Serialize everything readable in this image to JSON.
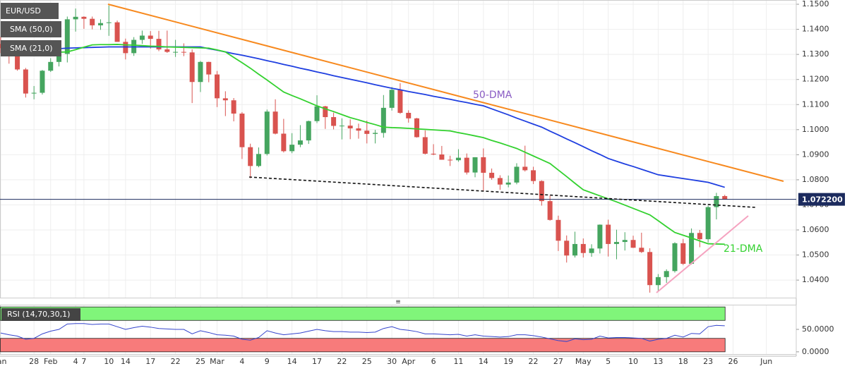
{
  "chart_data": [
    {
      "type": "candlestick",
      "categories": [
        "Jan",
        null,
        null,
        null,
        "28",
        null,
        "Feb",
        null,
        null,
        "4",
        "7",
        null,
        null,
        "10",
        null,
        "14",
        null,
        null,
        "17",
        null,
        null,
        "22",
        null,
        null,
        "25",
        null,
        "Mar",
        null,
        null,
        "4",
        null,
        null,
        "9",
        null,
        null,
        "14",
        null,
        null,
        "17",
        null,
        null,
        "22",
        null,
        null,
        "25",
        null,
        null,
        "30",
        null,
        "Apr",
        null,
        null,
        "6",
        null,
        null,
        "11",
        null,
        null,
        "14",
        null,
        null,
        "19",
        null,
        null,
        "22",
        null,
        null,
        "27",
        null,
        null,
        "May",
        null,
        null,
        "5",
        null,
        null,
        "10",
        null,
        null,
        "13",
        null,
        null,
        "18",
        null,
        null,
        "23",
        null,
        null,
        "26",
        null,
        null,
        null,
        "Jun",
        null,
        null,
        null
      ],
      "series": [
        {
          "name": "EUR/USD",
          "up_color": "#45a55f",
          "down_color": "#d9534f",
          "open": [
            1.1342,
            1.1325,
            1.13,
            1.124,
            1.1144,
            1.1147,
            1.1235,
            1.127,
            1.1302,
            1.144,
            1.145,
            1.1442,
            1.1416,
            1.1425,
            1.1428,
            1.135,
            1.1305,
            1.1358,
            1.1375,
            1.1362,
            1.132,
            1.131,
            1.131,
            1.1308,
            1.119,
            1.127,
            1.122,
            1.1125,
            1.1117,
            1.1064,
            1.093,
            1.0855,
            1.0903,
            1.1072,
            1.0984,
            1.0914,
            1.094,
            1.0957,
            1.1034,
            1.1093,
            1.105,
            1.1015,
            1.1016,
            1.1005,
            1.0996,
            1.0983,
            1.0987,
            1.1087,
            1.1159,
            1.1067,
            1.1045,
            1.097,
            1.0904,
            1.0901,
            1.088,
            1.0878,
            1.0888,
            1.0829,
            1.089,
            1.0828,
            1.0807,
            1.0781,
            1.0789,
            1.0852,
            1.0838,
            1.0795,
            1.0715,
            1.064,
            1.0557,
            1.0498,
            1.0544,
            1.0508,
            1.0526,
            1.0621,
            1.0544,
            1.0552,
            1.056,
            1.0529,
            1.0512,
            1.038,
            1.0412,
            1.0436,
            1.0547,
            1.0465,
            1.0588,
            1.0563,
            1.0691,
            1.0735,
            null,
            null,
            null,
            null,
            null,
            null,
            null,
            null
          ],
          "high": [
            1.137,
            1.1335,
            1.1311,
            1.1246,
            1.1174,
            1.1238,
            1.1285,
            1.1315,
            1.1451,
            1.1483,
            1.1452,
            1.1451,
            1.144,
            1.1495,
            1.1435,
            1.1363,
            1.1369,
            1.1395,
            1.1393,
            1.1394,
            1.1395,
            1.1358,
            1.1344,
            1.132,
            1.1274,
            1.1271,
            1.1234,
            1.1153,
            1.1126,
            1.107,
            1.0944,
            1.0929,
            1.108,
            1.1121,
            1.1043,
            1.0986,
            1.1018,
            1.1036,
            1.1137,
            1.1095,
            1.1068,
            1.1045,
            1.1041,
            1.1024,
            1.1036,
            1.0999,
            1.1138,
            1.117,
            1.1185,
            1.1077,
            1.1047,
            1.0997,
            1.0942,
            1.0935,
            1.0896,
            1.0922,
            1.0905,
            1.089,
            1.0925,
            1.0845,
            1.0818,
            1.0817,
            1.0866,
            1.0936,
            1.0852,
            1.0798,
            1.0737,
            1.0657,
            1.0578,
            1.0593,
            1.0566,
            1.0543,
            1.0622,
            1.0641,
            1.0601,
            1.0591,
            1.0577,
            1.0589,
            1.0527,
            1.0424,
            1.0443,
            1.0551,
            1.0564,
            1.0606,
            1.06,
            1.0697,
            1.0748,
            1.074,
            null,
            null,
            null,
            null,
            null,
            null,
            null,
            null
          ],
          "low": [
            1.1305,
            1.1263,
            1.1235,
            1.1128,
            1.1121,
            1.114,
            1.123,
            1.1252,
            1.1268,
            1.1391,
            1.1402,
            1.14,
            1.1398,
            1.1374,
            1.136,
            1.128,
            1.1294,
            1.1342,
            1.1323,
            1.1313,
            1.1306,
            1.129,
            1.1293,
            1.1106,
            1.115,
            1.1189,
            1.109,
            1.1054,
            1.1033,
            1.0883,
            1.0806,
            1.085,
            1.0897,
            1.0981,
            1.0909,
            1.0906,
            1.093,
            1.0943,
            1.1026,
            1.1003,
            1.1001,
            1.0961,
            1.0962,
            1.0964,
            1.0945,
            1.0945,
            1.0968,
            1.1076,
            1.1063,
            1.1028,
            1.0968,
            1.0901,
            1.0898,
            1.088,
            1.0855,
            1.0872,
            1.0821,
            1.081,
            1.0757,
            1.08,
            1.076,
            1.077,
            1.0782,
            1.0833,
            1.0783,
            1.0697,
            1.0637,
            1.0516,
            1.047,
            1.049,
            1.049,
            1.0493,
            1.0506,
            1.0494,
            1.0483,
            1.0518,
            1.0528,
            1.0508,
            1.035,
            1.0354,
            1.0389,
            1.043,
            1.046,
            1.0462,
            1.0531,
            1.055,
            1.0642,
            1.0721,
            null,
            null,
            null,
            null,
            null,
            null,
            null,
            null
          ],
          "close": [
            1.1325,
            1.13,
            1.124,
            1.1144,
            1.1147,
            1.1235,
            1.127,
            1.1302,
            1.144,
            1.145,
            1.1442,
            1.1416,
            1.1425,
            1.1428,
            1.135,
            1.1305,
            1.1358,
            1.1375,
            1.1362,
            1.132,
            1.131,
            1.131,
            1.1308,
            1.119,
            1.127,
            1.122,
            1.1125,
            1.1117,
            1.1064,
            1.093,
            1.0855,
            1.0903,
            1.1072,
            1.0984,
            1.0914,
            1.094,
            1.0957,
            1.1034,
            1.1093,
            1.105,
            1.1015,
            1.1016,
            1.1005,
            1.0996,
            1.0983,
            1.0987,
            1.1087,
            1.1159,
            1.1067,
            1.1045,
            1.097,
            1.0904,
            1.0901,
            1.088,
            1.0878,
            1.0888,
            1.0829,
            1.089,
            1.0828,
            1.0807,
            1.0781,
            1.0789,
            1.0852,
            1.0838,
            1.0795,
            1.0715,
            1.064,
            1.0557,
            1.0498,
            1.0544,
            1.0508,
            1.0526,
            1.0621,
            1.0544,
            1.0552,
            1.056,
            1.0529,
            1.0512,
            1.038,
            1.0412,
            1.0436,
            1.0547,
            1.0465,
            1.0588,
            1.0563,
            1.0691,
            1.0735,
            1.0722,
            null,
            null,
            null,
            null,
            null,
            null,
            null,
            null
          ]
        },
        {
          "name": "SMA (50,0)",
          "type": "line",
          "color": "#1f3fe0",
          "values": [
            1.131,
            1.1312,
            1.1314,
            1.1316,
            1.1317,
            1.1319,
            1.1321,
            1.1323,
            1.1325,
            1.1326,
            1.1327,
            1.1328,
            1.1329,
            1.133,
            1.133,
            1.133,
            1.133,
            1.133,
            1.133,
            1.133,
            1.133,
            1.133,
            1.133,
            1.133,
            1.133,
            1.1323,
            1.1317,
            1.131,
            1.1303,
            1.1297,
            1.129,
            1.1283,
            1.1275,
            1.1268,
            1.126,
            1.1253,
            1.1245,
            1.1238,
            1.123,
            1.1223,
            1.1215,
            1.1208,
            1.1201,
            1.1194,
            1.1187,
            1.1179,
            1.1172,
            1.1165,
            1.1159,
            1.1152,
            1.1146,
            1.114,
            1.1133,
            1.1127,
            1.1121,
            1.1114,
            1.1108,
            1.1101,
            1.1095,
            1.1083,
            1.1071,
            1.1059,
            1.1046,
            1.1034,
            1.1022,
            1.101,
            1.0994,
            1.0979,
            1.0963,
            1.0948,
            1.0932,
            1.0916,
            1.0901,
            1.0885,
            1.0874,
            1.0863,
            1.0853,
            1.0842,
            1.0831,
            1.082,
            1.0815,
            1.081,
            1.0805,
            1.08,
            1.0795,
            1.079,
            1.078,
            1.077,
            null,
            null,
            null,
            null,
            null,
            null,
            null,
            null
          ]
        },
        {
          "name": "SMA (21,0)",
          "type": "line",
          "color": "#33d12f",
          "values": [
            1.13,
            1.1301,
            1.1303,
            1.1304,
            1.1305,
            1.1306,
            1.1308,
            1.1309,
            1.131,
            1.1319,
            1.1329,
            1.1338,
            1.1339,
            1.1339,
            1.134,
            1.1338,
            1.1337,
            1.1335,
            1.1333,
            1.1332,
            1.133,
            1.1329,
            1.1328,
            1.1327,
            1.1326,
            1.1325,
            1.1318,
            1.131,
            1.1288,
            1.1267,
            1.1245,
            1.1221,
            1.1198,
            1.1174,
            1.115,
            1.1136,
            1.1123,
            1.1109,
            1.1095,
            1.1083,
            1.1072,
            1.106,
            1.1048,
            1.1039,
            1.1029,
            1.102,
            1.101,
            1.1008,
            1.1007,
            1.1005,
            1.1003,
            1.1001,
            1.0999,
            1.0997,
            1.0995,
            1.0988,
            1.0982,
            1.0975,
            1.0968,
            1.0957,
            1.0947,
            1.0936,
            1.0925,
            1.091,
            1.0895,
            1.088,
            1.0865,
            1.0839,
            1.0813,
            1.0786,
            1.076,
            1.0748,
            1.0736,
            1.0724,
            1.0712,
            1.0699,
            1.0686,
            1.0673,
            1.066,
            1.0637,
            1.0613,
            1.059,
            1.0579,
            1.0568,
            1.0556,
            1.0545,
            1.0544,
            1.0543,
            null,
            null,
            null,
            null,
            null,
            null,
            null,
            null
          ]
        }
      ],
      "ylim": [
        1.033,
        1.1517
      ],
      "yticks": [
        {
          "value": 1.15,
          "label": "1.1500"
        },
        {
          "value": 1.14,
          "label": "1.1400"
        },
        {
          "value": 1.13,
          "label": "1.1300"
        },
        {
          "value": 1.12,
          "label": "1.1200"
        },
        {
          "value": 1.11,
          "label": "1.1100"
        },
        {
          "value": 1.1,
          "label": "1.1000"
        },
        {
          "value": 1.09,
          "label": "1.0900"
        },
        {
          "value": 1.08,
          "label": "1.0800"
        },
        {
          "value": 1.07,
          "label": "1.0700"
        },
        {
          "value": 1.06,
          "label": "1.0600"
        },
        {
          "value": 1.05,
          "label": "1.0500"
        },
        {
          "value": 1.04,
          "label": "1.0400"
        }
      ],
      "grid": true,
      "last_price": {
        "value": 1.0722,
        "label": "1.072200",
        "color": "#1c2b5e"
      },
      "annotations": [
        {
          "text": "50-DMA",
          "color": "#8a5cc4"
        },
        {
          "text": "21-DMA",
          "color": "#33d12f"
        }
      ]
    },
    {
      "type": "line",
      "title": "RSI (14,70,30,1)",
      "color": "#3444cc",
      "values": [
        42,
        38,
        35,
        28,
        30,
        40,
        46,
        50,
        62,
        63,
        63,
        61,
        62,
        62,
        56,
        50,
        54,
        57,
        55,
        52,
        51,
        50,
        50,
        40,
        47,
        43,
        38,
        37,
        35,
        28,
        26,
        32,
        47,
        42,
        38,
        40,
        42,
        46,
        50,
        47,
        45,
        45,
        44,
        44,
        43,
        44,
        52,
        56,
        50,
        48,
        45,
        40,
        40,
        39,
        38,
        39,
        35,
        38,
        35,
        34,
        33,
        34,
        38,
        38,
        36,
        33,
        29,
        25,
        23,
        29,
        27,
        28,
        35,
        31,
        32,
        32,
        31,
        30,
        24,
        28,
        30,
        37,
        33,
        41,
        40,
        56,
        59,
        58,
        null,
        null,
        null,
        null,
        null,
        null,
        null,
        null
      ],
      "ylim": [
        -5,
        105
      ],
      "yticks": [
        {
          "value": 50,
          "label": "50.0000"
        },
        {
          "value": 0,
          "label": "0.0000"
        }
      ],
      "upper_band": [
        70,
        100
      ],
      "upper_color": "#80f57a",
      "lower_band": [
        0,
        30
      ],
      "lower_color": "#f77b7b"
    }
  ]
}
